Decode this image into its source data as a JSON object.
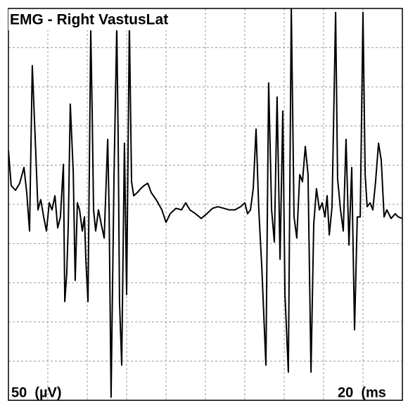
{
  "chart_data": {
    "type": "line",
    "title": "EMG - Right VastusLat",
    "annotations": [
      "50  (µV)",
      "20  (ms"
    ],
    "color": "#000000",
    "grid": true,
    "xlim": [
      0,
      200
    ],
    "ylim": [
      -250,
      250
    ],
    "xticks": [
      0,
      20,
      40,
      60,
      80,
      100,
      120,
      140,
      160,
      180,
      200
    ],
    "yticks": [
      -250,
      -200,
      -150,
      -100,
      -50,
      0,
      50,
      100,
      150,
      200,
      250
    ],
    "x": [
      0,
      1.4,
      3.6,
      5.7,
      7.9,
      9.3,
      10.7,
      12.1,
      13.6,
      15,
      16.4,
      17.9,
      19.3,
      20.7,
      22.1,
      23.6,
      25,
      26.4,
      27.9,
      28.6,
      29.6,
      30.4,
      31.4,
      32.9,
      33.9,
      35,
      36.1,
      37.5,
      38.6,
      39.3,
      40.4,
      41.8,
      42.5,
      43.2,
      44.3,
      45.7,
      47.1,
      48.6,
      50.4,
      51.1,
      52.1,
      53.6,
      55,
      55.7,
      56.4,
      57.5,
      58.9,
      60,
      61.4,
      62.5,
      63.6,
      65.4,
      67.1,
      68.9,
      70.7,
      72.5,
      75,
      77.9,
      80,
      82.1,
      85,
      87.9,
      90,
      92.1,
      95,
      97.9,
      100.7,
      103.6,
      106.4,
      109.3,
      112.1,
      115,
      117.9,
      120,
      121.4,
      122.9,
      124.3,
      125.7,
      127.1,
      128.6,
      130.7,
      132.1,
      133.6,
      135,
      136.4,
      137.9,
      139.3,
      140.4,
      142.1,
      143.6,
      145,
      146.4,
      147.9,
      149.3,
      150.7,
      152.1,
      153.6,
      155,
      156.4,
      157.9,
      159.3,
      160.7,
      161.8,
      162.9,
      164.3,
      166.1,
      167.1,
      168.6,
      170,
      171.4,
      172.9,
      174.3,
      175.7,
      177.1,
      178.6,
      180,
      181.1,
      182.1,
      183.6,
      185,
      186.4,
      187.9,
      189.3,
      190.7,
      192.1,
      194.3,
      196.4,
      197.9,
      200
    ],
    "values": [
      69,
      24,
      18,
      27,
      47,
      15,
      -34,
      177,
      83,
      -7,
      6,
      -16,
      -34,
      2,
      -7,
      11,
      -30,
      -16,
      51,
      -124,
      -88,
      -25,
      128,
      42,
      -97,
      2,
      -7,
      -34,
      -16,
      -70,
      -124,
      222,
      119,
      -7,
      -34,
      -7,
      -25,
      -43,
      83,
      -7,
      -246,
      38,
      227,
      83,
      -124,
      -205,
      78,
      -115,
      231,
      29,
      11,
      15,
      20,
      24,
      27,
      15,
      6,
      -7,
      -23,
      -12,
      -5,
      -7,
      2,
      -7,
      -12,
      -18,
      -12,
      -5,
      -3,
      -5,
      -7,
      -7,
      -3,
      2,
      -12,
      -7,
      20,
      96,
      -7,
      -79,
      -205,
      155,
      -7,
      -48,
      137,
      -70,
      119,
      -115,
      -214,
      250,
      -16,
      -43,
      38,
      29,
      74,
      38,
      -214,
      -25,
      20,
      -7,
      2,
      -16,
      11,
      -39,
      -3,
      245,
      33,
      -7,
      -34,
      83,
      -52,
      47,
      -160,
      -16,
      -16,
      245,
      38,
      -3,
      2,
      -7,
      29,
      78,
      56,
      -16,
      -7,
      -18,
      -12,
      -16,
      -18
    ]
  }
}
